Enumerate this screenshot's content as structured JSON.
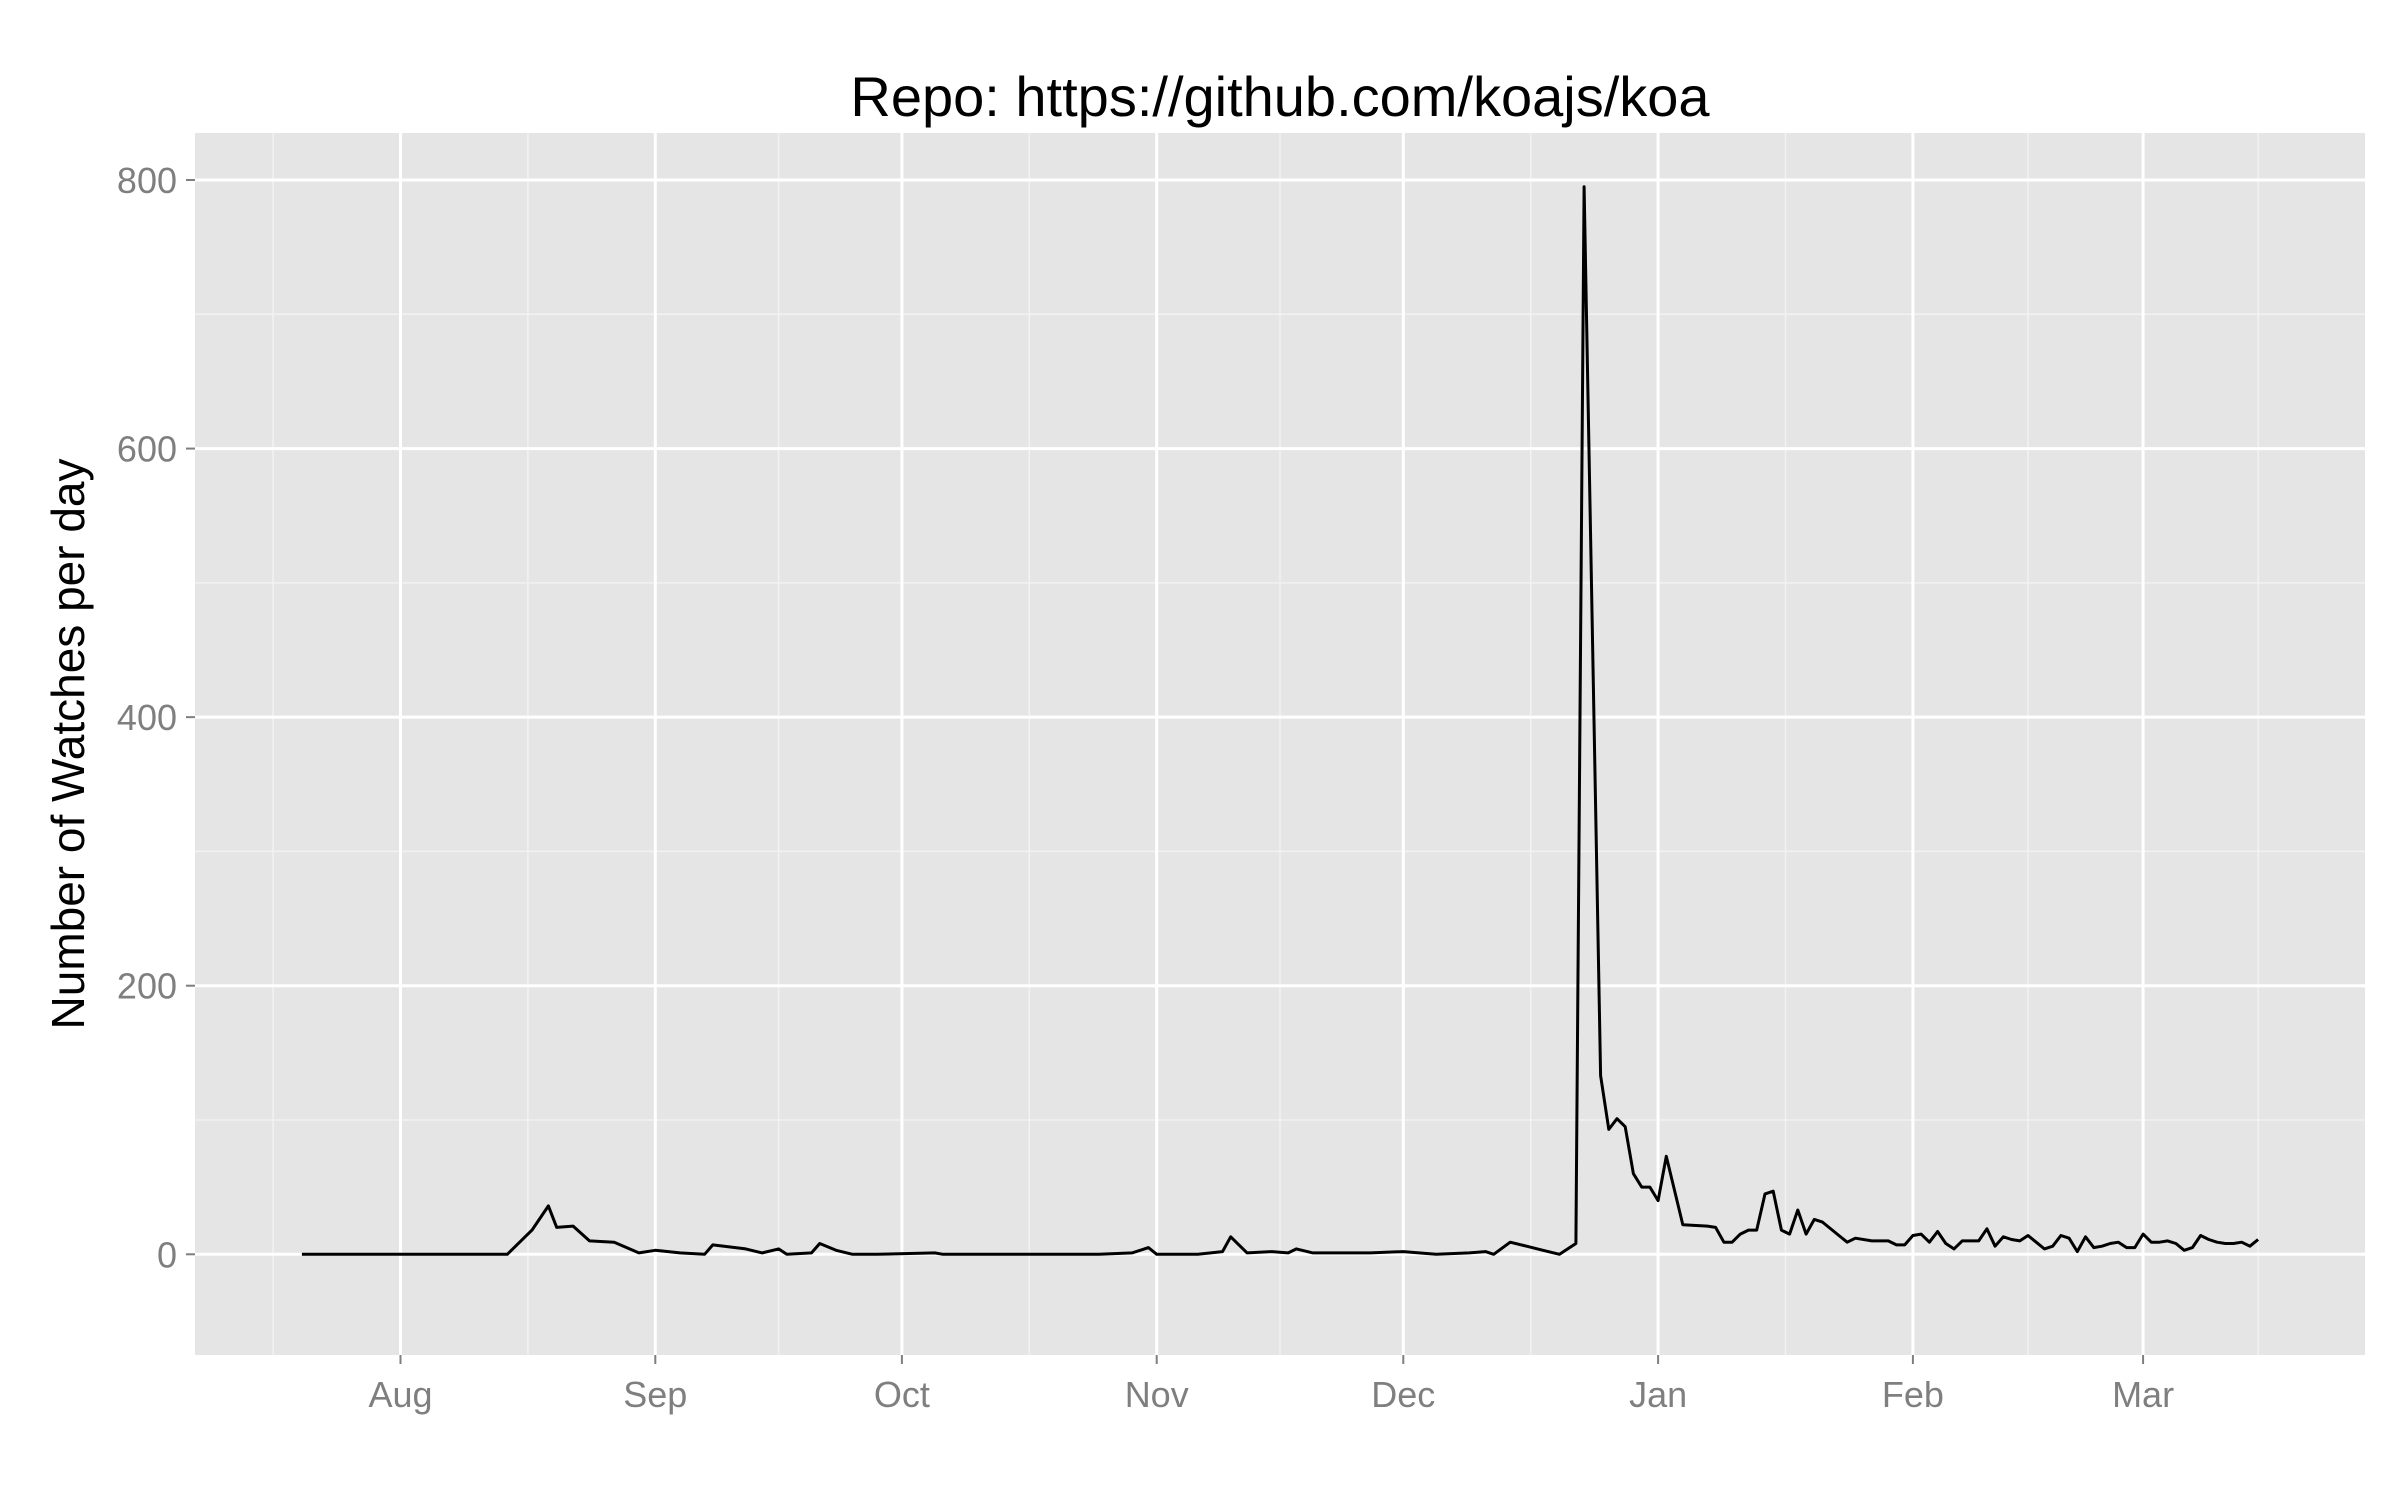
{
  "chart_data": {
    "type": "line",
    "title": "Repo: https://github.com/koajs/koa",
    "xlabel": "",
    "ylabel": "Number of Watches per day",
    "x_axis": {
      "type": "date",
      "range": [
        "2013-07-07",
        "2014-03-28"
      ],
      "ticks": [
        {
          "date": "2013-08-01",
          "label": "Aug"
        },
        {
          "date": "2013-09-01",
          "label": "Sep"
        },
        {
          "date": "2013-10-01",
          "label": "Oct"
        },
        {
          "date": "2013-11-01",
          "label": "Nov"
        },
        {
          "date": "2013-12-01",
          "label": "Dec"
        },
        {
          "date": "2014-01-01",
          "label": "Jan"
        },
        {
          "date": "2014-02-01",
          "label": "Feb"
        },
        {
          "date": "2014-03-01",
          "label": "Mar"
        }
      ]
    },
    "y_axis": {
      "range": [
        -75,
        835
      ],
      "ticks": [
        0,
        200,
        400,
        600,
        800
      ]
    },
    "grid": true,
    "legend": "none",
    "colors": {
      "panel": "#e5e5e5",
      "grid_major": "#ffffff",
      "grid_minor": "#f2f2f2",
      "line": "#000000",
      "tick": "#7f7f7f"
    },
    "series": [
      {
        "points": [
          [
            "2013-07-20",
            0
          ],
          [
            "2013-08-01",
            0
          ],
          [
            "2013-08-10",
            0
          ],
          [
            "2013-08-14",
            0
          ],
          [
            "2013-08-17",
            18
          ],
          [
            "2013-08-19",
            36
          ],
          [
            "2013-08-20",
            20
          ],
          [
            "2013-08-22",
            21
          ],
          [
            "2013-08-24",
            10
          ],
          [
            "2013-08-27",
            9
          ],
          [
            "2013-08-30",
            1
          ],
          [
            "2013-09-01",
            3
          ],
          [
            "2013-09-04",
            1
          ],
          [
            "2013-09-07",
            0
          ],
          [
            "2013-09-08",
            7
          ],
          [
            "2013-09-12",
            4
          ],
          [
            "2013-09-14",
            1
          ],
          [
            "2013-09-16",
            4
          ],
          [
            "2013-09-17",
            0
          ],
          [
            "2013-09-20",
            1
          ],
          [
            "2013-09-21",
            8
          ],
          [
            "2013-09-23",
            3
          ],
          [
            "2013-09-25",
            0
          ],
          [
            "2013-09-28",
            0
          ],
          [
            "2013-10-05",
            1
          ],
          [
            "2013-10-06",
            0
          ],
          [
            "2013-10-15",
            0
          ],
          [
            "2013-10-25",
            0
          ],
          [
            "2013-10-29",
            1
          ],
          [
            "2013-10-31",
            5
          ],
          [
            "2013-11-01",
            0
          ],
          [
            "2013-11-06",
            0
          ],
          [
            "2013-11-09",
            2
          ],
          [
            "2013-11-10",
            13
          ],
          [
            "2013-11-12",
            1
          ],
          [
            "2013-11-15",
            2
          ],
          [
            "2013-11-17",
            1
          ],
          [
            "2013-11-18",
            4
          ],
          [
            "2013-11-20",
            1
          ],
          [
            "2013-11-25",
            1
          ],
          [
            "2013-11-27",
            1
          ],
          [
            "2013-12-01",
            2
          ],
          [
            "2013-12-05",
            0
          ],
          [
            "2013-12-09",
            1
          ],
          [
            "2013-12-11",
            2
          ],
          [
            "2013-12-12",
            0
          ],
          [
            "2013-12-14",
            9
          ],
          [
            "2013-12-16",
            6
          ],
          [
            "2013-12-18",
            3
          ],
          [
            "2013-12-20",
            0
          ],
          [
            "2013-12-21",
            4
          ],
          [
            "2013-12-22",
            8
          ],
          [
            "2013-12-23",
            795
          ],
          [
            "2013-12-25",
            133
          ],
          [
            "2013-12-26",
            93
          ],
          [
            "2013-12-27",
            101
          ],
          [
            "2013-12-28",
            95
          ],
          [
            "2013-12-29",
            60
          ],
          [
            "2013-12-30",
            50
          ],
          [
            "2013-12-31",
            50
          ],
          [
            "2014-01-01",
            40
          ],
          [
            "2014-01-02",
            73
          ],
          [
            "2014-01-04",
            22
          ],
          [
            "2014-01-07",
            21
          ],
          [
            "2014-01-08",
            20
          ],
          [
            "2014-01-09",
            9
          ],
          [
            "2014-01-10",
            9
          ],
          [
            "2014-01-11",
            15
          ],
          [
            "2014-01-12",
            18
          ],
          [
            "2014-01-13",
            18
          ],
          [
            "2014-01-14",
            45
          ],
          [
            "2014-01-15",
            47
          ],
          [
            "2014-01-16",
            18
          ],
          [
            "2014-01-17",
            15
          ],
          [
            "2014-01-18",
            33
          ],
          [
            "2014-01-19",
            15
          ],
          [
            "2014-01-20",
            26
          ],
          [
            "2014-01-21",
            24
          ],
          [
            "2014-01-23",
            14
          ],
          [
            "2014-01-24",
            9
          ],
          [
            "2014-01-25",
            12
          ],
          [
            "2014-01-27",
            10
          ],
          [
            "2014-01-29",
            10
          ],
          [
            "2014-01-30",
            7
          ],
          [
            "2014-01-31",
            7
          ],
          [
            "2014-02-01",
            14
          ],
          [
            "2014-02-02",
            15
          ],
          [
            "2014-02-03",
            9
          ],
          [
            "2014-02-04",
            17
          ],
          [
            "2014-02-05",
            8
          ],
          [
            "2014-02-06",
            4
          ],
          [
            "2014-02-07",
            10
          ],
          [
            "2014-02-09",
            10
          ],
          [
            "2014-02-10",
            19
          ],
          [
            "2014-02-11",
            6
          ],
          [
            "2014-02-12",
            13
          ],
          [
            "2014-02-13",
            11
          ],
          [
            "2014-02-14",
            10
          ],
          [
            "2014-02-15",
            14
          ],
          [
            "2014-02-16",
            9
          ],
          [
            "2014-02-17",
            4
          ],
          [
            "2014-02-18",
            6
          ],
          [
            "2014-02-19",
            14
          ],
          [
            "2014-02-20",
            12
          ],
          [
            "2014-02-21",
            2
          ],
          [
            "2014-02-22",
            13
          ],
          [
            "2014-02-23",
            5
          ],
          [
            "2014-02-24",
            6
          ],
          [
            "2014-02-25",
            8
          ],
          [
            "2014-02-26",
            9
          ],
          [
            "2014-02-27",
            5
          ],
          [
            "2014-02-28",
            5
          ],
          [
            "2014-03-01",
            15
          ],
          [
            "2014-03-02",
            9
          ],
          [
            "2014-03-03",
            9
          ],
          [
            "2014-03-04",
            10
          ],
          [
            "2014-03-05",
            8
          ],
          [
            "2014-03-06",
            3
          ],
          [
            "2014-03-07",
            5
          ],
          [
            "2014-03-08",
            14
          ],
          [
            "2014-03-09",
            11
          ],
          [
            "2014-03-10",
            9
          ],
          [
            "2014-03-11",
            8
          ],
          [
            "2014-03-12",
            8
          ],
          [
            "2014-03-13",
            9
          ],
          [
            "2014-03-14",
            6
          ],
          [
            "2014-03-15",
            11
          ]
        ]
      }
    ]
  }
}
